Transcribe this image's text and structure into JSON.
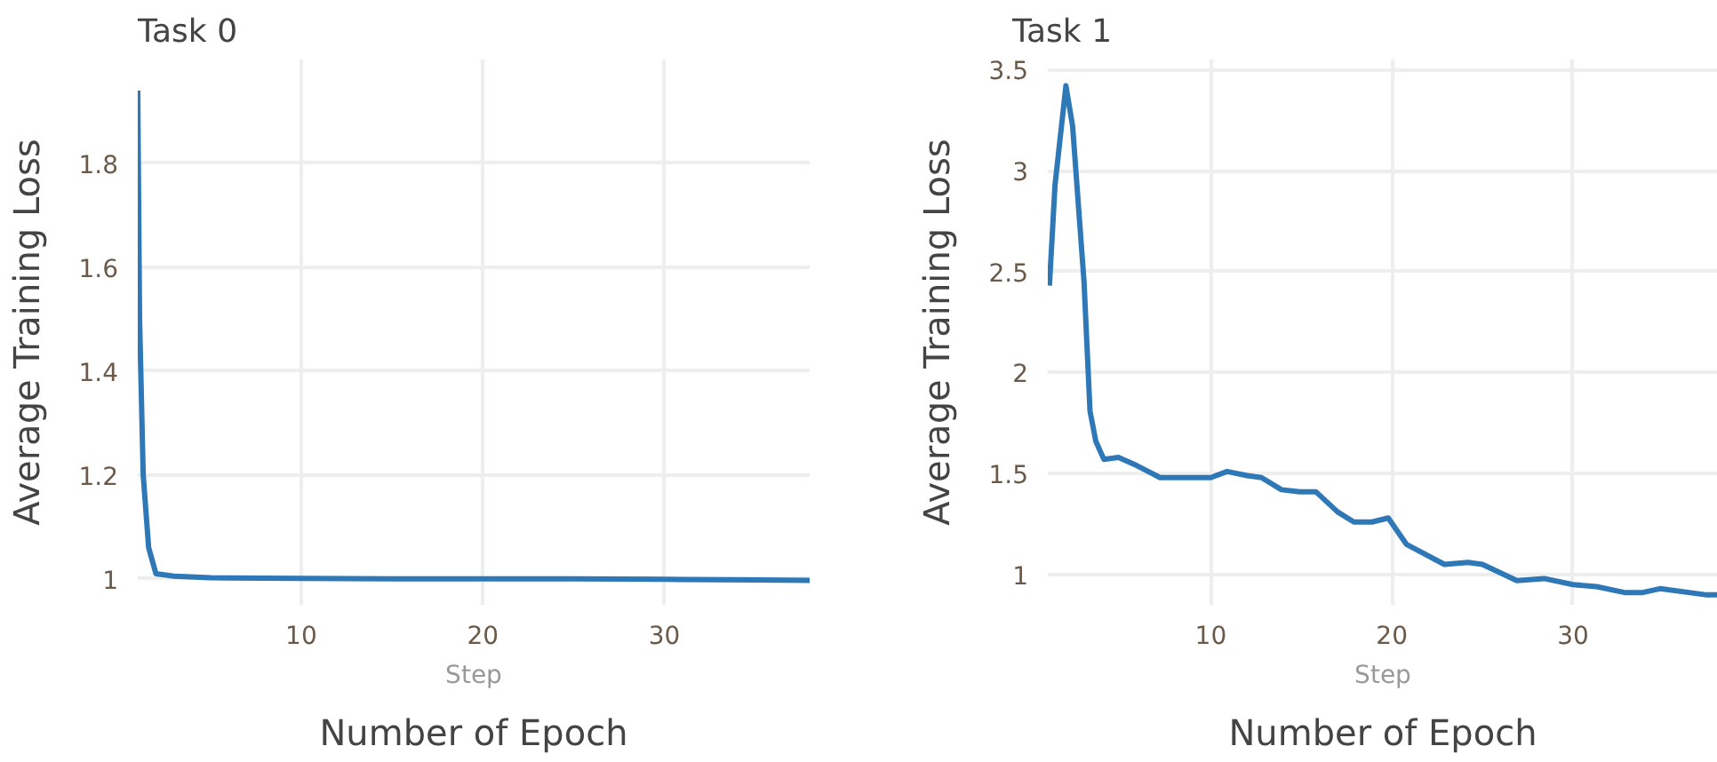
{
  "chart_data": [
    {
      "type": "line",
      "title": "Task 0",
      "xlabel": "Number of Epoch",
      "ylabel": "Average Training Loss",
      "annotations": [
        "Step"
      ],
      "xlim": [
        1,
        38
      ],
      "ylim": [
        0.95,
        2.0
      ],
      "xticks": [
        10,
        20,
        30
      ],
      "yticks": [
        1,
        1.2,
        1.4,
        1.6,
        1.8
      ],
      "grid": true,
      "series": [
        {
          "color": "#2f78b7",
          "x": [
            1,
            1.1,
            1.3,
            1.6,
            2,
            3,
            5,
            10,
            15,
            20,
            25,
            30,
            35,
            38
          ],
          "values": [
            1.94,
            1.5,
            1.2,
            1.06,
            1.01,
            1.005,
            1.002,
            1.001,
            1.0,
            1.0,
            1.0,
            0.999,
            0.998,
            0.997
          ]
        }
      ]
    },
    {
      "type": "line",
      "title": "Task 1",
      "xlabel": "Number of Epoch",
      "ylabel": "Average Training Loss",
      "annotations": [
        "Step"
      ],
      "xlim": [
        1,
        38
      ],
      "ylim": [
        0.85,
        3.55
      ],
      "xticks": [
        10,
        20,
        30
      ],
      "yticks": [
        1,
        1.5,
        2,
        2.5,
        3,
        3.5
      ],
      "grid": true,
      "series": [
        {
          "color": "#2f78b7",
          "x": [
            1.09,
            1.4,
            2.0,
            2.37,
            3.0,
            3.33,
            3.65,
            4.1,
            4.9,
            5.9,
            7.2,
            10,
            10.9,
            12,
            12.8,
            13.9,
            14.9,
            15.8,
            17.0,
            17.9,
            18.9,
            19.8,
            20.8,
            22.9,
            24.2,
            25.0,
            26.9,
            28.4,
            30,
            31.3,
            32.9,
            33.8,
            34.8,
            37.3,
            38
          ],
          "values": [
            2.43,
            2.93,
            3.42,
            3.22,
            2.45,
            1.81,
            1.66,
            1.57,
            1.58,
            1.54,
            1.48,
            1.48,
            1.51,
            1.49,
            1.48,
            1.42,
            1.41,
            1.41,
            1.31,
            1.26,
            1.26,
            1.28,
            1.15,
            1.05,
            1.06,
            1.05,
            0.97,
            0.98,
            0.95,
            0.94,
            0.91,
            0.91,
            0.93,
            0.9,
            0.9
          ]
        }
      ]
    }
  ]
}
